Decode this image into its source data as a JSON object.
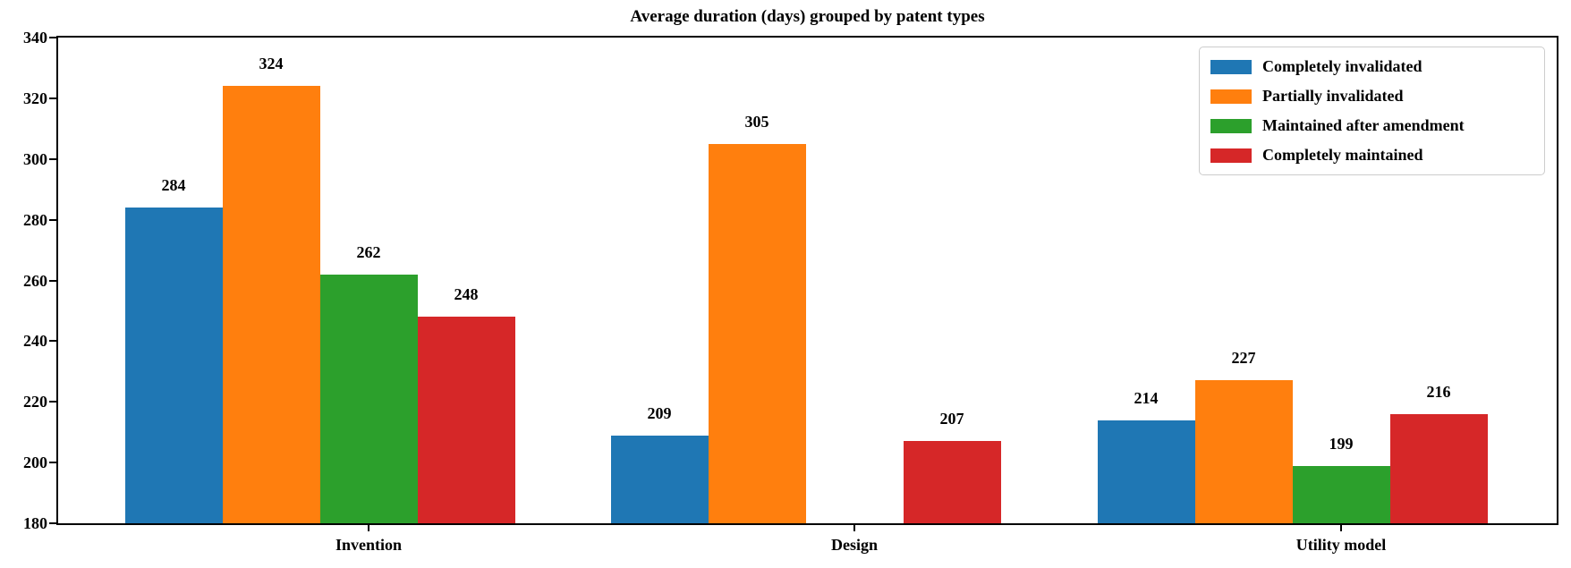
{
  "chart_data": {
    "type": "bar",
    "title": "Average duration (days) grouped by patent types",
    "categories": [
      "Invention",
      "Design",
      "Utility model"
    ],
    "series": [
      {
        "name": "Completely invalidated",
        "color": "#1f77b4",
        "values": [
          284,
          209,
          214
        ]
      },
      {
        "name": "Partially invalidated",
        "color": "#ff7f0e",
        "values": [
          324,
          305,
          227
        ]
      },
      {
        "name": "Maintained after amendment",
        "color": "#2ca02c",
        "values": [
          262,
          null,
          199
        ]
      },
      {
        "name": "Completely maintained",
        "color": "#d62728",
        "values": [
          248,
          207,
          216
        ]
      }
    ],
    "ylabel": "",
    "xlabel": "",
    "ylim": [
      180,
      340
    ],
    "yticks": [
      180,
      200,
      220,
      240,
      260,
      280,
      300,
      320,
      340
    ],
    "bar_value_labels": true,
    "grid": false,
    "legend_position": "upper right"
  }
}
